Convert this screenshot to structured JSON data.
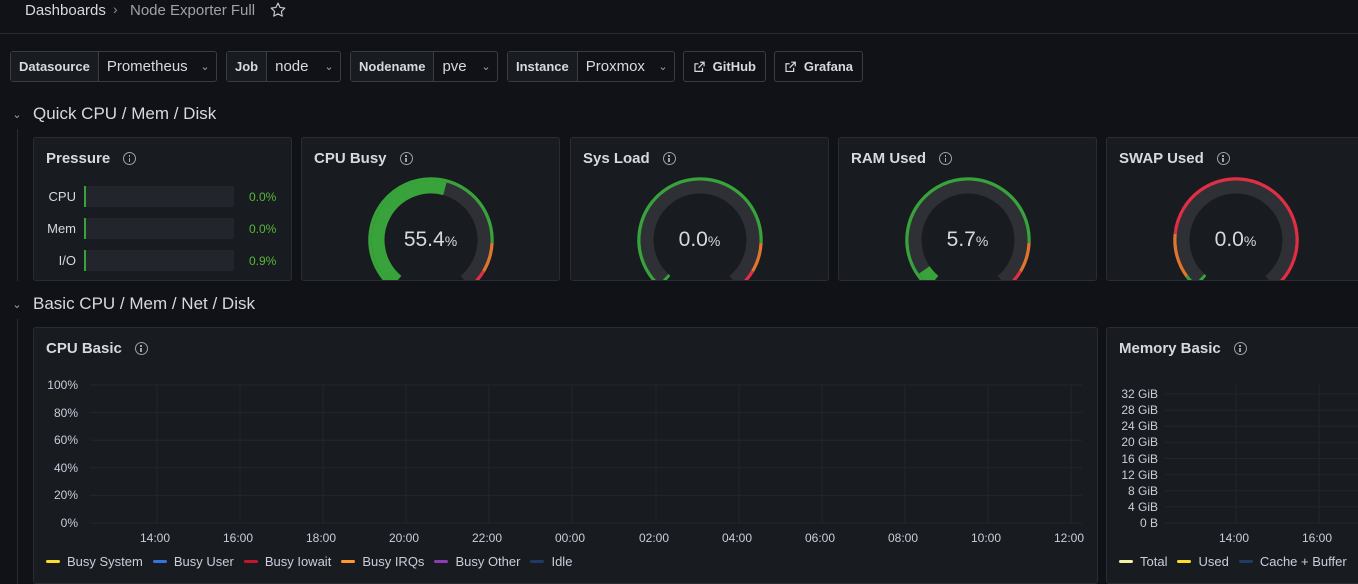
{
  "breadcrumb": {
    "root": "Dashboards",
    "separator": "›",
    "current": "Node Exporter Full"
  },
  "variables": [
    {
      "label": "Datasource",
      "value": "Prometheus"
    },
    {
      "label": "Job",
      "value": "node"
    },
    {
      "label": "Nodename",
      "value": "pve"
    },
    {
      "label": "Instance",
      "value": "Proxmox"
    }
  ],
  "links": [
    {
      "label": "GitHub"
    },
    {
      "label": "Grafana"
    }
  ],
  "rows": [
    {
      "title": "Quick CPU / Mem / Disk"
    },
    {
      "title": "Basic CPU / Mem / Net / Disk"
    }
  ],
  "pressure": {
    "title": "Pressure",
    "items": [
      {
        "name": "CPU",
        "value": "0.0%",
        "fraction": 0.0
      },
      {
        "name": "Mem",
        "value": "0.0%",
        "fraction": 0.0
      },
      {
        "name": "I/O",
        "value": "0.9%",
        "fraction": 0.009
      }
    ]
  },
  "gauges": [
    {
      "title": "CPU Busy",
      "value": "55.4",
      "unit": "%",
      "fraction": 0.554,
      "scheme": "green"
    },
    {
      "title": "Sys Load",
      "value": "0.0",
      "unit": "%",
      "fraction": 0.0,
      "scheme": "green"
    },
    {
      "title": "RAM Used",
      "value": "5.7",
      "unit": "%",
      "fraction": 0.057,
      "scheme": "green"
    },
    {
      "title": "SWAP Used",
      "value": "0.0",
      "unit": "%",
      "fraction": 0.0,
      "scheme": "red"
    }
  ],
  "colors": {
    "green": "#37a33a",
    "orange": "#e0752d",
    "red": "#e02f44",
    "track": "#2f3036"
  },
  "chart_data": [
    {
      "type": "line",
      "title": "CPU Basic",
      "y_ticks": [
        "100%",
        "80%",
        "60%",
        "40%",
        "20%",
        "0%"
      ],
      "x_ticks": [
        "14:00",
        "16:00",
        "18:00",
        "20:00",
        "22:00",
        "00:00",
        "02:00",
        "04:00",
        "06:00",
        "08:00",
        "10:00",
        "12:00"
      ],
      "grid": true,
      "legend_position": "bottom",
      "series": [
        {
          "name": "Busy System",
          "color": "#fade2a",
          "values": []
        },
        {
          "name": "Busy User",
          "color": "#3274d9",
          "values": []
        },
        {
          "name": "Busy Iowait",
          "color": "#c4162a",
          "values": []
        },
        {
          "name": "Busy IRQs",
          "color": "#ff9830",
          "values": []
        },
        {
          "name": "Busy Other",
          "color": "#8f3bb8",
          "values": []
        },
        {
          "name": "Idle",
          "color": "#1f3b63",
          "values": []
        }
      ]
    },
    {
      "type": "area",
      "title": "Memory Basic",
      "y_ticks": [
        "32 GiB",
        "28 GiB",
        "24 GiB",
        "20 GiB",
        "16 GiB",
        "12 GiB",
        "8 GiB",
        "4 GiB",
        "0 B"
      ],
      "x_ticks": [
        "14:00",
        "16:00"
      ],
      "grid": true,
      "legend_position": "bottom",
      "series": [
        {
          "name": "Total",
          "color": "#f2f2a8",
          "values": []
        },
        {
          "name": "Used",
          "color": "#fade2a",
          "values": []
        },
        {
          "name": "Cache + Buffer",
          "color": "#1f3b63",
          "values": []
        }
      ]
    }
  ]
}
